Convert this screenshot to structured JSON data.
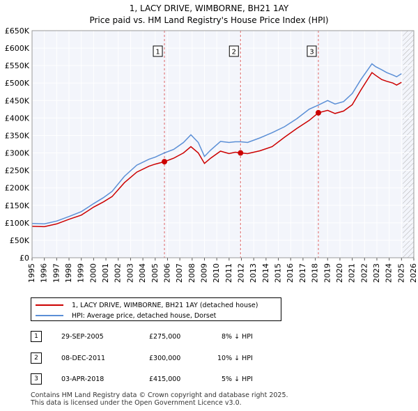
{
  "title": "1, LACY DRIVE, WIMBORNE, BH21 1AY",
  "subtitle": "Price paid vs. HM Land Registry's House Price Index (HPI)",
  "chart_data": {
    "type": "line",
    "xlim": [
      1995,
      2026
    ],
    "ylim": [
      0,
      650000
    ],
    "x_ticks": [
      "1995",
      "1996",
      "1997",
      "1998",
      "1999",
      "2000",
      "2001",
      "2002",
      "2003",
      "2004",
      "2005",
      "2006",
      "2007",
      "2008",
      "2009",
      "2010",
      "2011",
      "2012",
      "2013",
      "2014",
      "2015",
      "2016",
      "2017",
      "2018",
      "2019",
      "2020",
      "2021",
      "2022",
      "2023",
      "2024",
      "2025",
      "2026"
    ],
    "y_ticks": [
      {
        "value": 0,
        "label": "£0"
      },
      {
        "value": 50000,
        "label": "£50K"
      },
      {
        "value": 100000,
        "label": "£100K"
      },
      {
        "value": 150000,
        "label": "£150K"
      },
      {
        "value": 200000,
        "label": "£200K"
      },
      {
        "value": 250000,
        "label": "£250K"
      },
      {
        "value": 300000,
        "label": "£300K"
      },
      {
        "value": 350000,
        "label": "£350K"
      },
      {
        "value": 400000,
        "label": "£400K"
      },
      {
        "value": 450000,
        "label": "£450K"
      },
      {
        "value": 500000,
        "label": "£500K"
      },
      {
        "value": 550000,
        "label": "£550K"
      },
      {
        "value": 600000,
        "label": "£600K"
      },
      {
        "value": 650000,
        "label": "£650K"
      }
    ],
    "grid": true,
    "forecast_start": 2025.1,
    "series": [
      {
        "name": "1, LACY DRIVE, WIMBORNE, BH21 1AY (detached house)",
        "color": "#cc0000",
        "points": [
          [
            1995,
            90000
          ],
          [
            1996,
            89000
          ],
          [
            1997,
            97000
          ],
          [
            1998,
            110000
          ],
          [
            1999,
            122000
          ],
          [
            2000,
            145000
          ],
          [
            2000.8,
            160000
          ],
          [
            2001.5,
            175000
          ],
          [
            2002.5,
            215000
          ],
          [
            2003.5,
            245000
          ],
          [
            2004.5,
            262000
          ],
          [
            2005.0,
            268000
          ],
          [
            2005.75,
            275000
          ],
          [
            2006.5,
            285000
          ],
          [
            2007.3,
            300000
          ],
          [
            2007.9,
            318000
          ],
          [
            2008.5,
            300000
          ],
          [
            2009.0,
            270000
          ],
          [
            2009.5,
            285000
          ],
          [
            2010.3,
            305000
          ],
          [
            2011.0,
            298000
          ],
          [
            2011.5,
            302000
          ],
          [
            2011.93,
            300000
          ],
          [
            2012.5,
            298000
          ],
          [
            2013.5,
            306000
          ],
          [
            2014.5,
            318000
          ],
          [
            2015.5,
            345000
          ],
          [
            2016.5,
            370000
          ],
          [
            2017.5,
            393000
          ],
          [
            2018.25,
            415000
          ],
          [
            2019,
            422000
          ],
          [
            2019.6,
            413000
          ],
          [
            2020.3,
            420000
          ],
          [
            2021,
            438000
          ],
          [
            2021.7,
            480000
          ],
          [
            2022.6,
            530000
          ],
          [
            2022.9,
            522000
          ],
          [
            2023.4,
            510000
          ],
          [
            2023.8,
            505000
          ],
          [
            2024.3,
            500000
          ],
          [
            2024.6,
            494000
          ],
          [
            2025.0,
            502000
          ]
        ]
      },
      {
        "name": "HPI: Average price, detached house, Dorset",
        "color": "#5b8fd6",
        "points": [
          [
            1995,
            98000
          ],
          [
            1996,
            97000
          ],
          [
            1997,
            105000
          ],
          [
            1998,
            118000
          ],
          [
            1999,
            132000
          ],
          [
            2000,
            155000
          ],
          [
            2000.8,
            172000
          ],
          [
            2001.5,
            190000
          ],
          [
            2002.5,
            233000
          ],
          [
            2003.5,
            265000
          ],
          [
            2004.5,
            282000
          ],
          [
            2005.0,
            288000
          ],
          [
            2005.75,
            300000
          ],
          [
            2006.5,
            310000
          ],
          [
            2007.3,
            330000
          ],
          [
            2007.9,
            352000
          ],
          [
            2008.5,
            330000
          ],
          [
            2009.0,
            290000
          ],
          [
            2009.5,
            308000
          ],
          [
            2010.3,
            333000
          ],
          [
            2011.0,
            330000
          ],
          [
            2011.5,
            332000
          ],
          [
            2011.93,
            332000
          ],
          [
            2012.5,
            330000
          ],
          [
            2013.5,
            343000
          ],
          [
            2014.5,
            358000
          ],
          [
            2015.5,
            375000
          ],
          [
            2016.5,
            398000
          ],
          [
            2017.5,
            425000
          ],
          [
            2018.25,
            437000
          ],
          [
            2019,
            450000
          ],
          [
            2019.6,
            440000
          ],
          [
            2020.3,
            447000
          ],
          [
            2021,
            470000
          ],
          [
            2021.7,
            510000
          ],
          [
            2022.6,
            555000
          ],
          [
            2022.9,
            547000
          ],
          [
            2023.4,
            538000
          ],
          [
            2023.8,
            530000
          ],
          [
            2024.3,
            523000
          ],
          [
            2024.6,
            518000
          ],
          [
            2025.0,
            527000
          ]
        ]
      }
    ],
    "sales": [
      {
        "label": "1",
        "x": 2005.75,
        "price": 275000
      },
      {
        "label": "2",
        "x": 2011.93,
        "price": 300000
      },
      {
        "label": "3",
        "x": 2018.25,
        "price": 415000
      }
    ]
  },
  "legend": {
    "property_label": "1, LACY DRIVE, WIMBORNE, BH21 1AY (detached house)",
    "hpi_label": "HPI: Average price, detached house, Dorset"
  },
  "sales_table": [
    {
      "num": "1",
      "date": "29-SEP-2005",
      "price": "£275,000",
      "delta": "8% ↓ HPI"
    },
    {
      "num": "2",
      "date": "08-DEC-2011",
      "price": "£300,000",
      "delta": "10% ↓ HPI"
    },
    {
      "num": "3",
      "date": "03-APR-2018",
      "price": "£415,000",
      "delta": "5% ↓ HPI"
    }
  ],
  "footer": {
    "line1": "Contains HM Land Registry data © Crown copyright and database right 2025.",
    "line2": "This data is licensed under the Open Government Licence v3.0."
  }
}
